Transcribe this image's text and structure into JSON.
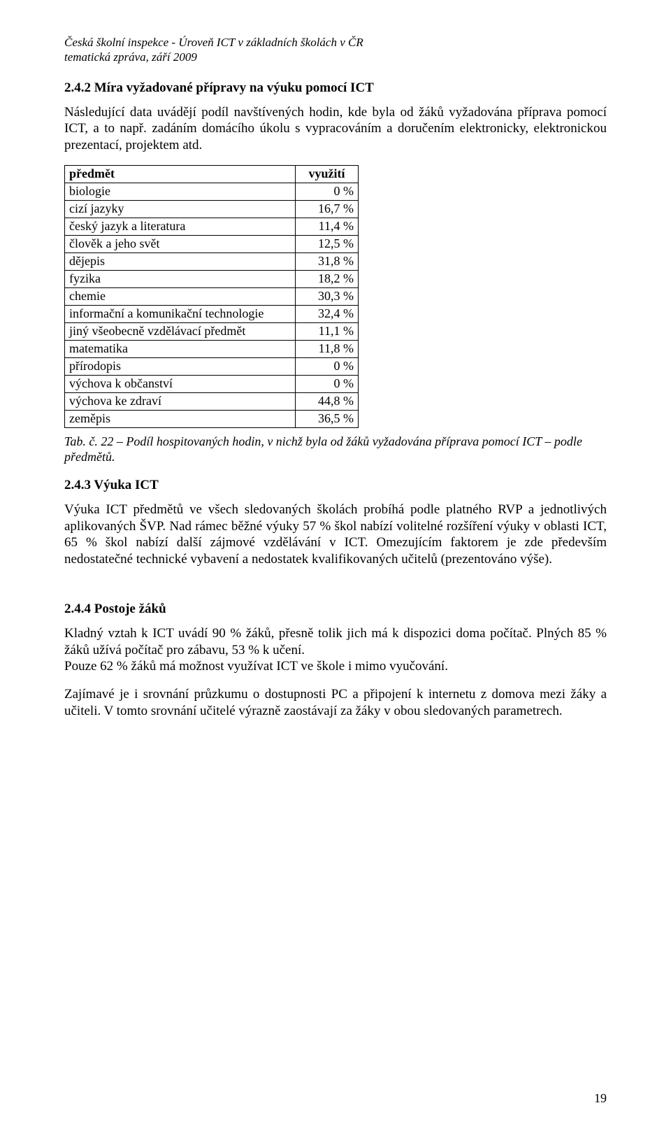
{
  "header": {
    "line1": "Česká školní inspekce - Úroveň ICT v základních školách v ČR",
    "line2": "tematická zpráva, září 2009"
  },
  "section_242": {
    "heading": "2.4.2  Míra vyžadované přípravy na výuku pomocí ICT",
    "paragraph": "Následující data uvádějí podíl navštívených hodin, kde byla od žáků vyžadována příprava pomocí ICT, a to např. zadáním domácího úkolu s vypracováním a doručením elektronicky, elektronickou prezentací, projektem atd."
  },
  "table22": {
    "col_subject_label": "předmět",
    "col_value_label": "využití",
    "rows": [
      {
        "subject": "biologie",
        "value": "0 %"
      },
      {
        "subject": "cizí jazyky",
        "value": "16,7 %"
      },
      {
        "subject": "český jazyk a literatura",
        "value": "11,4 %"
      },
      {
        "subject": "člověk a jeho svět",
        "value": "12,5 %"
      },
      {
        "subject": "dějepis",
        "value": "31,8 %"
      },
      {
        "subject": "fyzika",
        "value": "18,2 %"
      },
      {
        "subject": "chemie",
        "value": "30,3 %"
      },
      {
        "subject": "informační a komunikační technologie",
        "value": "32,4 %"
      },
      {
        "subject": "jiný všeobecně vzdělávací předmět",
        "value": "11,1 %"
      },
      {
        "subject": "matematika",
        "value": "11,8 %"
      },
      {
        "subject": "přírodopis",
        "value": "0 %"
      },
      {
        "subject": "výchova k občanství",
        "value": "0 %"
      },
      {
        "subject": "výchova ke zdraví",
        "value": "44,8 %"
      },
      {
        "subject": "zeměpis",
        "value": "36,5 %"
      }
    ],
    "caption": "Tab. č. 22 – Podíl hospitovaných hodin, v nichž byla od žáků vyžadována příprava pomocí ICT – podle předmětů."
  },
  "section_243": {
    "heading": "2.4.3  Výuka ICT",
    "paragraph": "Výuka ICT předmětů ve všech sledovaných školách probíhá podle platného RVP a jednotlivých aplikovaných ŠVP. Nad rámec běžné výuky 57 % škol nabízí volitelné rozšíření výuky v oblasti ICT, 65 % škol nabízí další zájmové vzdělávání v ICT. Omezujícím faktorem je zde především nedostatečné technické vybavení a nedostatek kvalifikovaných učitelů (prezentováno výše)."
  },
  "section_244": {
    "heading": "2.4.4  Postoje žáků",
    "p1": "Kladný vztah k ICT uvádí 90 % žáků, přesně tolik jich má k dispozici doma počítač. Plných 85 % žáků užívá počítač pro zábavu, 53 % k učení.",
    "p2": "Pouze 62 % žáků má možnost využívat ICT ve škole i mimo vyučování.",
    "p3": "Zajímavé je i srovnání průzkumu o dostupnosti PC a připojení k internetu z domova mezi žáky a učiteli. V tomto srovnání učitelé výrazně zaostávají za žáky v obou sledovaných parametrech."
  },
  "page_number": "19"
}
